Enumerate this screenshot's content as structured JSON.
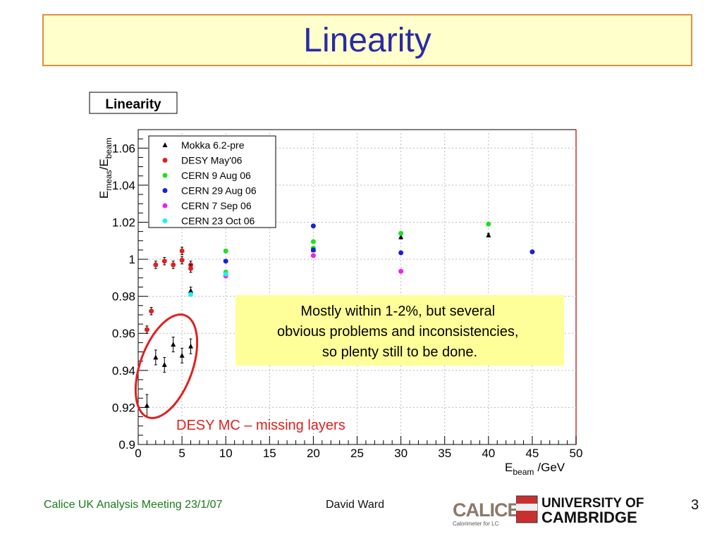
{
  "slide": {
    "title": "Linearity",
    "footer_left": "Calice UK Analysis Meeting 23/1/07",
    "footer_author": "David Ward",
    "page_number": "3",
    "logos": {
      "calice_text": "CALICE",
      "calice_sub": "Calorimeter for LC",
      "university_line1": "UNIVERSITY OF",
      "university_line2": "CAMBRIDGE"
    }
  },
  "chart_data": {
    "type": "scatter",
    "title": "Linearity",
    "xlabel_main": "E",
    "xlabel_sub": "beam",
    "xlabel_unit": "/GeV",
    "ylabel_main": "E",
    "ylabel_sub1": "meas",
    "ylabel_mid": "/E",
    "ylabel_sub2": "beam",
    "xlim": [
      0,
      50
    ],
    "ylim": [
      0.9,
      1.07
    ],
    "xticks": [
      0,
      5,
      10,
      15,
      20,
      25,
      30,
      35,
      40,
      45,
      50
    ],
    "yticks": [
      0.9,
      0.92,
      0.94,
      0.96,
      0.98,
      1,
      1.02,
      1.04,
      1.06
    ],
    "ytick_labels": [
      "0.9",
      "0.92",
      "0.94",
      "0.96",
      "0.98",
      "1",
      "1.02",
      "1.04",
      "1.06"
    ],
    "grid": true,
    "legend_position": "top-left",
    "series": [
      {
        "name": "Mokka 6.2-pre",
        "color": "#000000",
        "marker": "triangle",
        "points": [
          {
            "x": 1,
            "y": 0.921,
            "err": 0.006
          },
          {
            "x": 2,
            "y": 0.947,
            "err": 0.004
          },
          {
            "x": 3,
            "y": 0.943,
            "err": 0.004
          },
          {
            "x": 4,
            "y": 0.954,
            "err": 0.004
          },
          {
            "x": 5,
            "y": 0.948,
            "err": 0.004
          },
          {
            "x": 6,
            "y": 0.953,
            "err": 0.004
          },
          {
            "x": 6,
            "y": 0.983,
            "err": 0.002
          },
          {
            "x": 10,
            "y": 0.993,
            "err": 0.001
          },
          {
            "x": 20,
            "y": 1.005,
            "err": 0.001
          },
          {
            "x": 30,
            "y": 1.012,
            "err": 0.001
          },
          {
            "x": 40,
            "y": 1.013,
            "err": 0.001
          }
        ]
      },
      {
        "name": "DESY May'06",
        "color": "#e02020",
        "marker": "circle",
        "points": [
          {
            "x": 1,
            "y": 0.962,
            "err": 0.002
          },
          {
            "x": 1.5,
            "y": 0.972,
            "err": 0.002
          },
          {
            "x": 2,
            "y": 0.997,
            "err": 0.002
          },
          {
            "x": 3,
            "y": 0.999,
            "err": 0.002
          },
          {
            "x": 4,
            "y": 0.997,
            "err": 0.002
          },
          {
            "x": 5,
            "y": 1.0045,
            "err": 0.002
          },
          {
            "x": 5,
            "y": 0.9995,
            "err": 0.002
          },
          {
            "x": 6,
            "y": 0.997,
            "err": 0.002
          },
          {
            "x": 6,
            "y": 0.995,
            "err": 0.002
          }
        ]
      },
      {
        "name": "CERN 9 Aug 06",
        "color": "#20e020",
        "marker": "circle",
        "points": [
          {
            "x": 10,
            "y": 1.0045,
            "err": 0.0
          },
          {
            "x": 10,
            "y": 0.993,
            "err": 0.0
          },
          {
            "x": 20,
            "y": 1.0095,
            "err": 0.0
          },
          {
            "x": 20,
            "y": 1.006,
            "err": 0.0
          },
          {
            "x": 30,
            "y": 1.014,
            "err": 0.0
          },
          {
            "x": 40,
            "y": 1.019,
            "err": 0.0
          }
        ]
      },
      {
        "name": "CERN 29 Aug 06",
        "color": "#1a20d8",
        "marker": "circle",
        "points": [
          {
            "x": 10,
            "y": 0.999,
            "err": 0.0
          },
          {
            "x": 20,
            "y": 1.018,
            "err": 0.0
          },
          {
            "x": 20,
            "y": 1.005,
            "err": 0.0
          },
          {
            "x": 30,
            "y": 1.0035,
            "err": 0.0
          },
          {
            "x": 45,
            "y": 1.004,
            "err": 0.0
          }
        ]
      },
      {
        "name": "CERN 7 Sep 06",
        "color": "#f020f0",
        "marker": "circle",
        "points": [
          {
            "x": 10,
            "y": 0.991,
            "err": 0.0
          },
          {
            "x": 20,
            "y": 1.002,
            "err": 0.0
          },
          {
            "x": 30,
            "y": 0.9935,
            "err": 0.0
          }
        ]
      },
      {
        "name": "CERN 23 Oct 06",
        "color": "#20f0f0",
        "marker": "circle",
        "points": [
          {
            "x": 6,
            "y": 0.981,
            "err": 0.0
          },
          {
            "x": 10,
            "y": 0.992,
            "err": 0.0
          }
        ]
      }
    ],
    "annotations": {
      "note_text": "Mostly within 1-2%, but several obvious problems and inconsistencies, so plenty still to be done.",
      "circle_label": "DESY MC – missing layers",
      "note_bg": "#ffff99",
      "circle_color": "#e02020"
    }
  }
}
